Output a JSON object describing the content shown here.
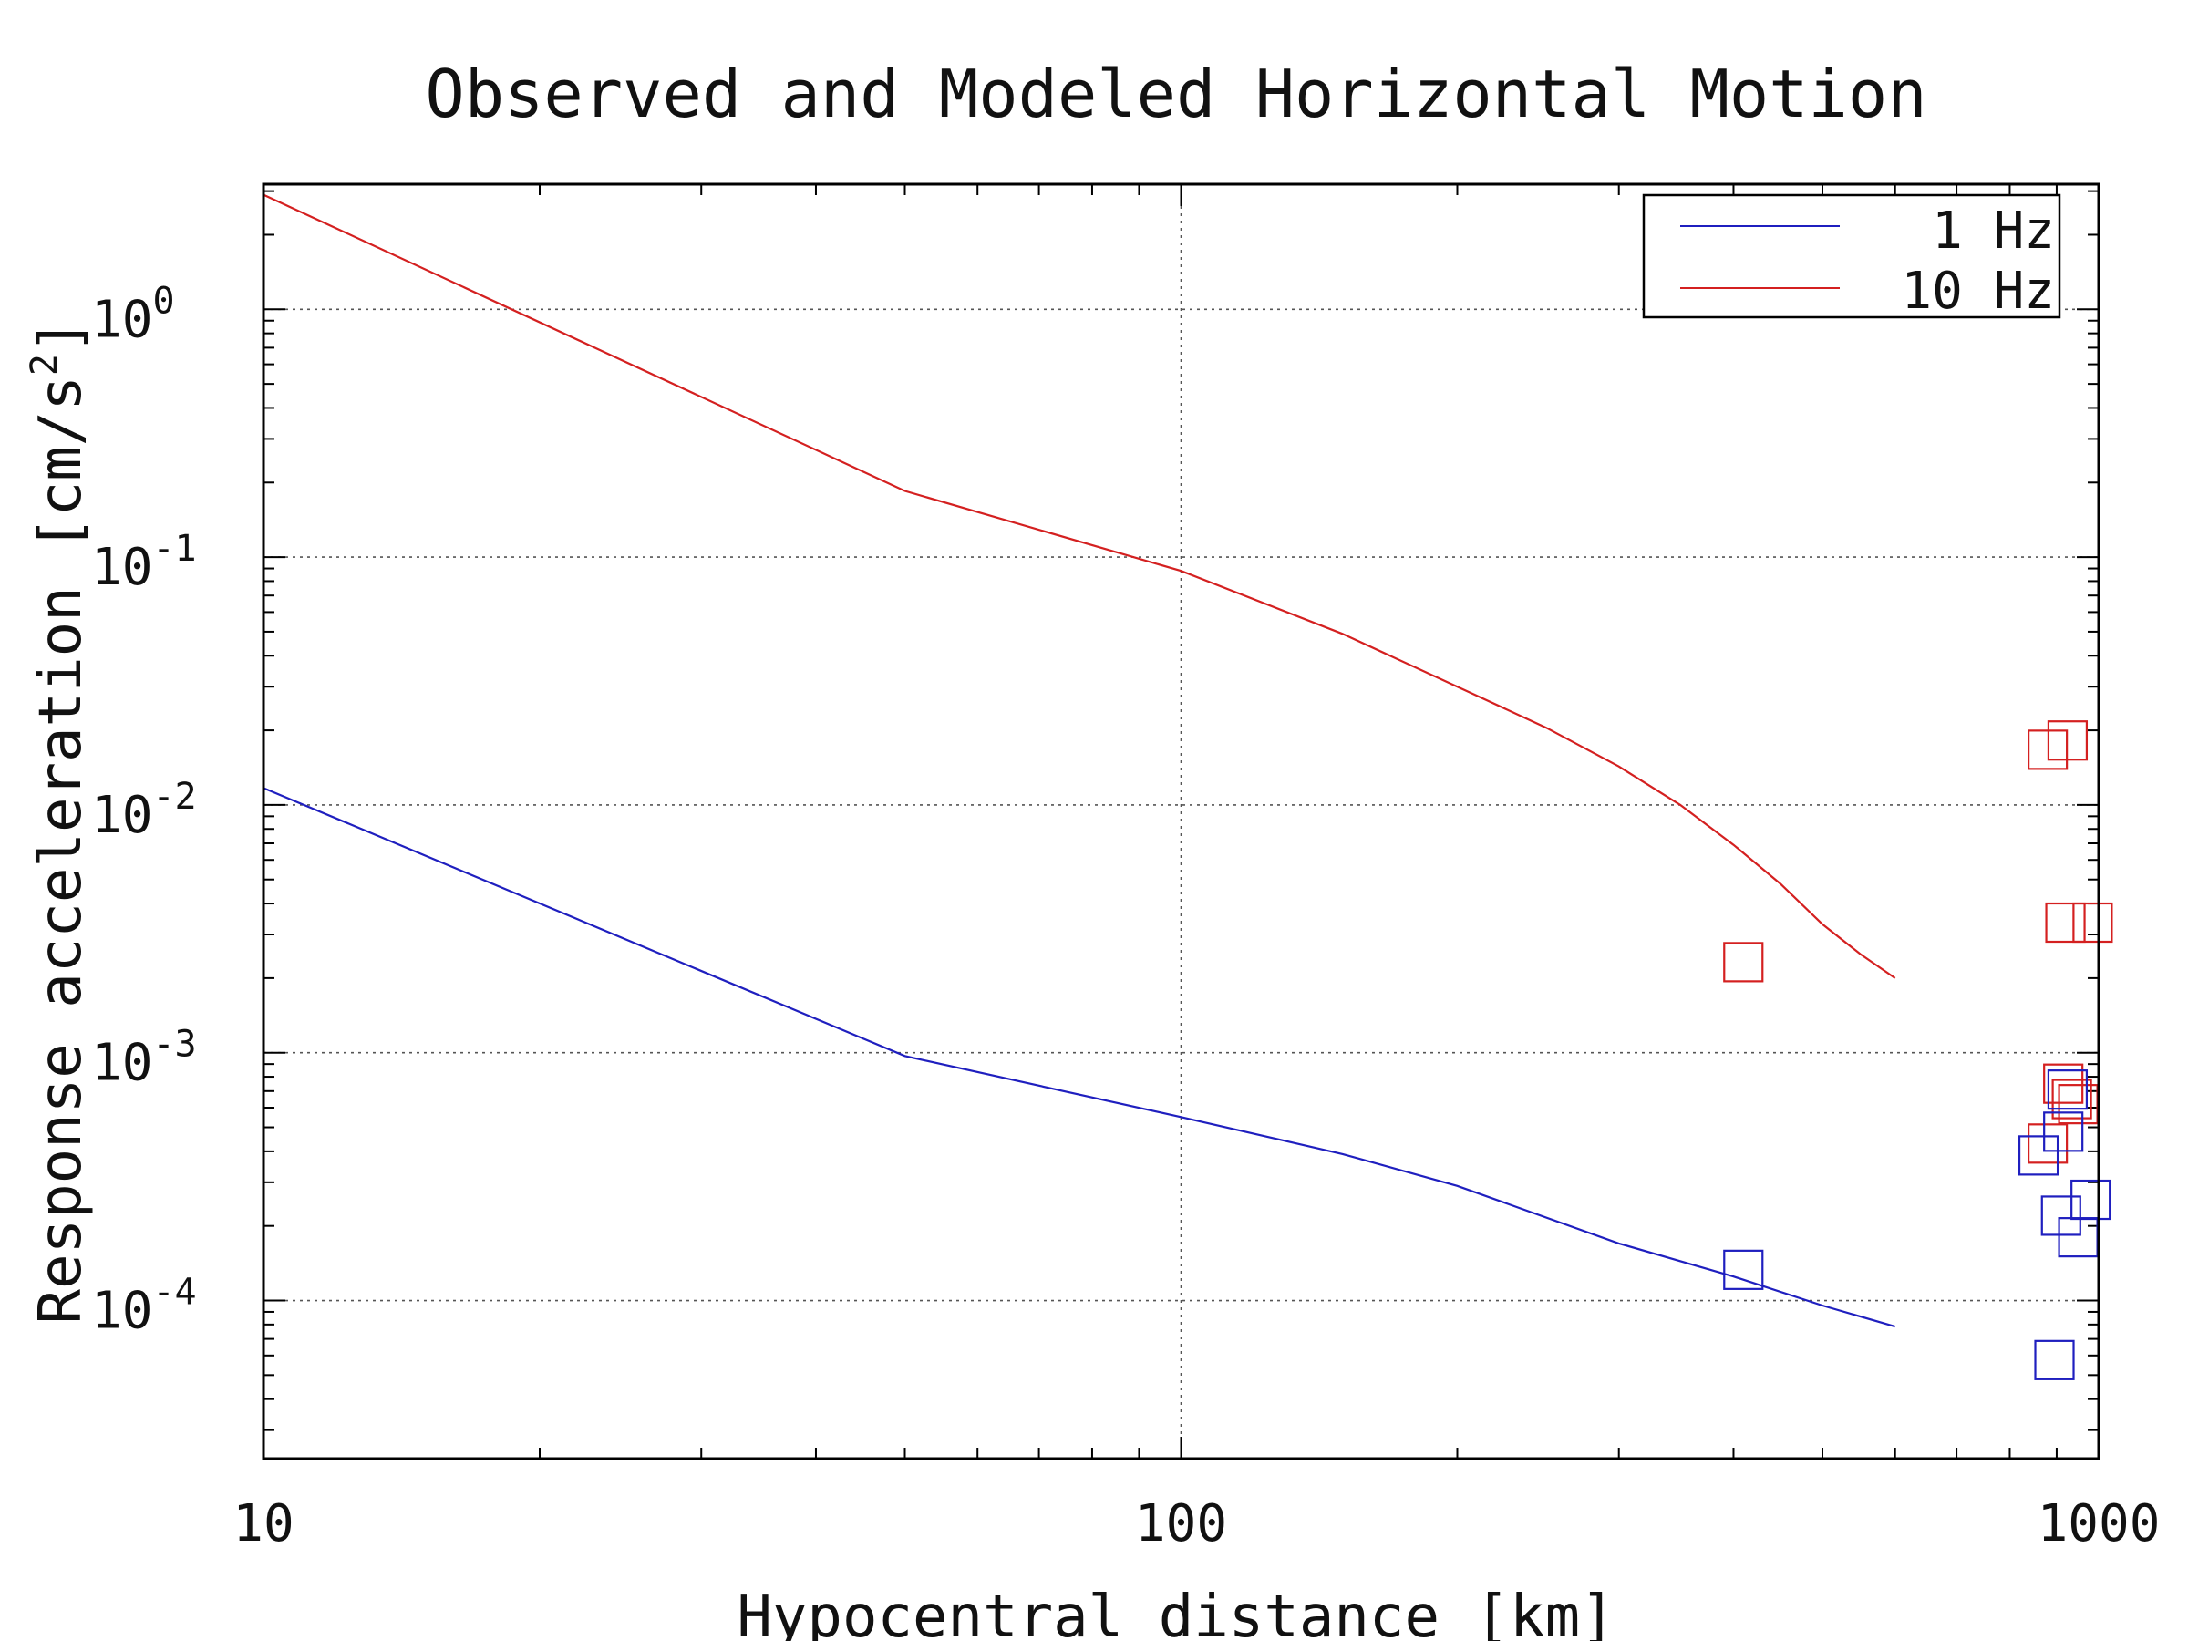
{
  "chart_data": {
    "type": "line",
    "title": "Observed and Modeled Horizontal Motion",
    "xlabel": "Hypocentral distance [km]",
    "ylabel": "Response acceleration [cm/s",
    "ylabel_sup": "2",
    "ylabel_tail": "]",
    "xscale": "log",
    "yscale": "log",
    "xlim": [
      10,
      1000
    ],
    "ylim": [
      2.3e-05,
      3.2
    ],
    "grid": true,
    "x_ticks": [
      {
        "value": 10,
        "label": "10"
      },
      {
        "value": 100,
        "label": "100"
      },
      {
        "value": 1000,
        "label": "1000"
      }
    ],
    "y_ticks": [
      {
        "value": 1,
        "base": "10",
        "exp": "0"
      },
      {
        "value": 0.1,
        "base": "10",
        "exp": "-1"
      },
      {
        "value": 0.01,
        "base": "10",
        "exp": "-2"
      },
      {
        "value": 0.001,
        "base": "10",
        "exp": "-3"
      },
      {
        "value": 0.0001,
        "base": "10",
        "exp": "-4"
      }
    ],
    "legend": {
      "position": "top-right",
      "entries": [
        {
          "label": "1 Hz",
          "color": "#1f1fbf"
        },
        {
          "label": "10 Hz",
          "color": "#d42020"
        }
      ]
    },
    "series": [
      {
        "name": "1 Hz",
        "color": "#1f1fbf",
        "x": [
          10,
          50,
          100,
          150,
          200,
          300,
          400,
          500,
          600
        ],
        "y": [
          0.0117,
          0.00097,
          0.00055,
          0.00039,
          0.00029,
          0.00017,
          0.000125,
          9.55e-05,
          7.85e-05
        ]
      },
      {
        "name": "10 Hz",
        "color": "#d42020",
        "x": [
          10,
          50,
          100,
          150,
          200,
          250,
          300,
          350,
          400,
          450,
          500,
          550,
          600
        ],
        "y": [
          2.9,
          0.185,
          0.088,
          0.049,
          0.03,
          0.0205,
          0.0143,
          0.01,
          0.0069,
          0.0048,
          0.0033,
          0.0025,
          0.002
        ]
      }
    ],
    "observed": [
      {
        "series": "10 Hz",
        "points": [
          [
            410,
            0.00232
          ],
          [
            880,
            0.0167
          ],
          [
            925,
            0.0182
          ],
          [
            920,
            0.00335
          ],
          [
            985,
            0.00335
          ],
          [
            915,
            0.00075
          ],
          [
            935,
            0.00065
          ],
          [
            950,
            0.00062
          ],
          [
            880,
            0.00043
          ]
        ]
      },
      {
        "series": "1 Hz",
        "points": [
          [
            410,
            0.000133
          ],
          [
            860,
            0.000385
          ],
          [
            915,
            0.00048
          ],
          [
            925,
            0.00071
          ],
          [
            910,
            0.00022
          ],
          [
            980,
            0.000255
          ],
          [
            950,
            0.00018
          ],
          [
            895,
            5.75e-05
          ]
        ]
      }
    ]
  }
}
